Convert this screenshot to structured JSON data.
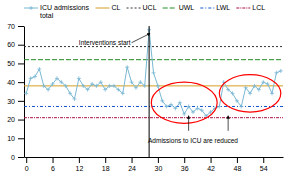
{
  "chart_data": {
    "type": "line",
    "x": [
      0,
      1,
      2,
      3,
      4,
      5,
      6,
      7,
      8,
      9,
      10,
      11,
      12,
      13,
      14,
      15,
      16,
      17,
      18,
      19,
      20,
      21,
      22,
      23,
      24,
      25,
      26,
      27,
      28,
      29,
      30,
      31,
      32,
      33,
      34,
      35,
      36,
      37,
      38,
      39,
      40,
      41,
      42,
      43,
      44,
      45,
      46,
      47,
      48,
      49,
      50,
      51,
      52,
      53,
      54,
      55,
      56,
      57,
      58
    ],
    "xlim": [
      -0.5,
      58.5
    ],
    "xticks": [
      0,
      6,
      12,
      18,
      24,
      30,
      36,
      42,
      48,
      54
    ],
    "ylim": [
      0,
      70
    ],
    "yticks": [
      0,
      10,
      20,
      30,
      40,
      50,
      60,
      70
    ],
    "grid": false,
    "legend": "upper left",
    "series": [
      {
        "name": "ICU admissions\ntotal",
        "color": "#7ab8d4",
        "marker": "plus",
        "line_style": "solid",
        "values": [
          34,
          42,
          43,
          47,
          38,
          36,
          39,
          42,
          40,
          38,
          34,
          31,
          42,
          38,
          36,
          39,
          38,
          40,
          36,
          38,
          38,
          36,
          34,
          48,
          40,
          37,
          40,
          38,
          68,
          45,
          38,
          30,
          27,
          28,
          26,
          29,
          23,
          27,
          24,
          26,
          25,
          22,
          24,
          26,
          27,
          40,
          36,
          34,
          30,
          27,
          37,
          34,
          38,
          36,
          40,
          39,
          34,
          45,
          46
        ]
      }
    ],
    "hlines": [
      {
        "name": "CL",
        "value": 38,
        "color": "#d4a020",
        "line_style": "solid"
      },
      {
        "name": "UCL",
        "value": 59,
        "color": "#333333",
        "line_style": "dotted"
      },
      {
        "name": "UWL",
        "value": 52,
        "color": "#228B22",
        "line_style": "dashed"
      },
      {
        "name": "LWL",
        "value": 27,
        "color": "#1155cc",
        "line_style": "dashdot"
      },
      {
        "name": "LCL",
        "value": 21,
        "color": "#aa1144",
        "line_style": "densedashdot"
      }
    ],
    "vlines": [
      {
        "x": 28,
        "color": "black"
      }
    ],
    "ellipses": [
      {
        "x": 36,
        "y": 29,
        "width": 15,
        "height": 22,
        "color": "red"
      },
      {
        "x": 51,
        "y": 34,
        "width": 14,
        "height": 20,
        "color": "red"
      }
    ],
    "annotations": [
      {
        "text": "Interventions start",
        "x": 12,
        "y": 60,
        "arrows": [
          {
            "x": 28.2,
            "y": 66
          }
        ]
      },
      {
        "text": "Admissions to ICU are reduced",
        "x": 38,
        "y": 10,
        "arrows": [
          {
            "x_from": 37,
            "y_from": 14,
            "x": 37,
            "y": 22
          },
          {
            "x_from": 46,
            "y_from": 14,
            "x": 46,
            "y": 22
          }
        ]
      }
    ]
  }
}
